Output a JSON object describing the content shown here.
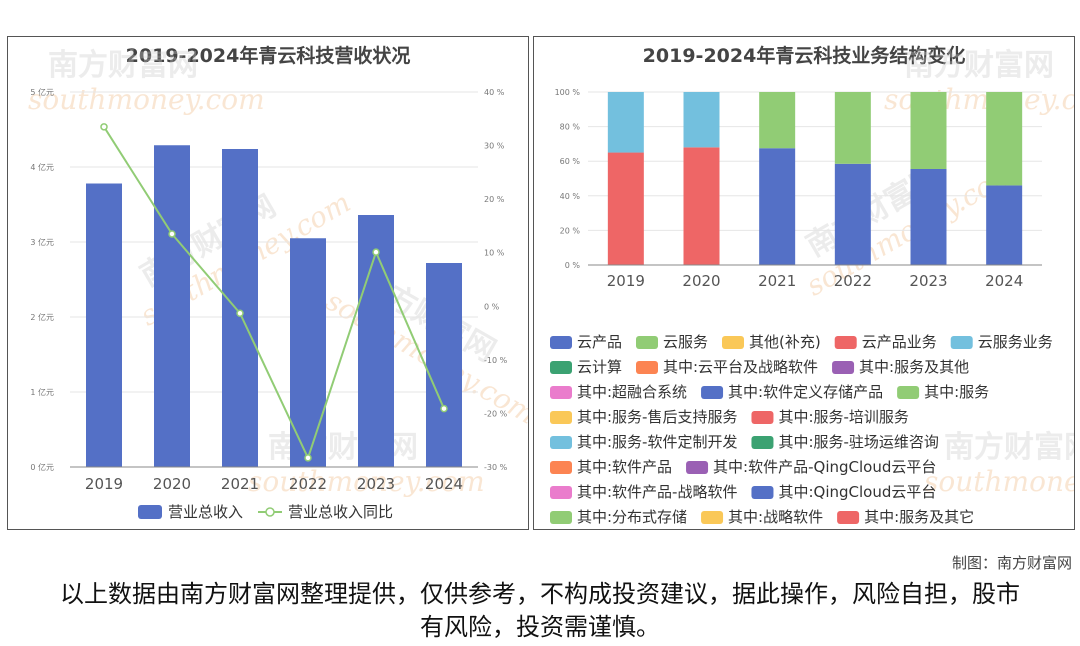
{
  "chart_data": [
    {
      "type": "bar",
      "title": "2019-2024年青云科技营收状况",
      "categories": [
        "2019",
        "2020",
        "2021",
        "2022",
        "2023",
        "2024"
      ],
      "series": [
        {
          "name": "营业总收入",
          "type": "bar",
          "axis": "left",
          "values": [
            3.78,
            4.29,
            4.24,
            3.05,
            3.36,
            2.72
          ],
          "color": "#5470c6"
        },
        {
          "name": "营业总收入同比",
          "type": "line",
          "axis": "right",
          "values": [
            33.5,
            13.5,
            -1.3,
            -28.3,
            10.1,
            -19.1
          ],
          "color": "#91cc75"
        }
      ],
      "left_axis": {
        "min": 0,
        "max": 5,
        "ticks": [
          "0 亿元",
          "1 亿元",
          "2 亿元",
          "3 亿元",
          "4 亿元",
          "5 亿元"
        ]
      },
      "right_axis": {
        "min": -30,
        "max": 40,
        "ticks": [
          "-30 %",
          "-20 %",
          "-10 %",
          "0 %",
          "10 %",
          "20 %",
          "30 %",
          "40 %"
        ]
      },
      "grid": true,
      "legend": "bottom"
    },
    {
      "type": "bar",
      "stacked": true,
      "title": "2019-2024年青云科技业务结构变化",
      "categories": [
        "2019",
        "2020",
        "2021",
        "2022",
        "2023",
        "2024"
      ],
      "series": [
        {
          "name": "云产品",
          "values": [
            0,
            0,
            67.5,
            58.5,
            55.5,
            46
          ],
          "color": "#5470c6"
        },
        {
          "name": "云服务",
          "values": [
            0,
            0,
            32.5,
            41.5,
            44.5,
            54
          ],
          "color": "#91cc75"
        },
        {
          "name": "其他(补充)",
          "values": [
            0,
            0,
            0,
            0,
            0,
            0
          ],
          "color": "#fac858"
        },
        {
          "name": "云产品业务",
          "values": [
            65,
            68,
            0,
            0,
            0,
            0
          ],
          "color": "#ee6666"
        },
        {
          "name": "云服务业务",
          "values": [
            35,
            32,
            0,
            0,
            0,
            0
          ],
          "color": "#73c0de"
        }
      ],
      "y_axis": {
        "min": 0,
        "max": 100,
        "ticks": [
          "0 %",
          "20 %",
          "40 %",
          "60 %",
          "80 %",
          "100 %"
        ]
      },
      "grid": true,
      "legend": "bottom",
      "legend_items": [
        {
          "name": "云产品",
          "color": "#5470c6"
        },
        {
          "name": "云服务",
          "color": "#91cc75"
        },
        {
          "name": "其他(补充)",
          "color": "#fac858"
        },
        {
          "name": "云产品业务",
          "color": "#ee6666"
        },
        {
          "name": "云服务业务",
          "color": "#73c0de"
        },
        {
          "name": "云计算",
          "color": "#3ba272"
        },
        {
          "name": "其中:云平台及战略软件",
          "color": "#fc8452"
        },
        {
          "name": "其中:服务及其他",
          "color": "#9a60b4"
        },
        {
          "name": "其中:超融合系统",
          "color": "#ea7ccc"
        },
        {
          "name": "其中:软件定义存储产品",
          "color": "#5470c6"
        },
        {
          "name": "其中:服务",
          "color": "#91cc75"
        },
        {
          "name": "其中:服务-售后支持服务",
          "color": "#fac858"
        },
        {
          "name": "其中:服务-培训服务",
          "color": "#ee6666"
        },
        {
          "name": "其中:服务-软件定制开发",
          "color": "#73c0de"
        },
        {
          "name": "其中:服务-驻场运维咨询",
          "color": "#3ba272"
        },
        {
          "name": "其中:软件产品",
          "color": "#fc8452"
        },
        {
          "name": "其中:软件产品-QingCloud云平台",
          "color": "#9a60b4"
        },
        {
          "name": "其中:软件产品-战略软件",
          "color": "#ea7ccc"
        },
        {
          "name": "其中:QingCloud云平台",
          "color": "#5470c6"
        },
        {
          "name": "其中:分布式存储",
          "color": "#91cc75"
        },
        {
          "name": "其中:战略软件",
          "color": "#fac858"
        },
        {
          "name": "其中:服务及其它",
          "color": "#ee6666"
        }
      ]
    }
  ],
  "watermark": {
    "cn": "南方财富网",
    "en": "southmoney.com"
  },
  "credit": "制图：南方财富网",
  "disclaimer": "以上数据由南方财富网整理提供，仅供参考，不构成投资建议，据此操作，风险自担，股市有风险，投资需谨慎。"
}
